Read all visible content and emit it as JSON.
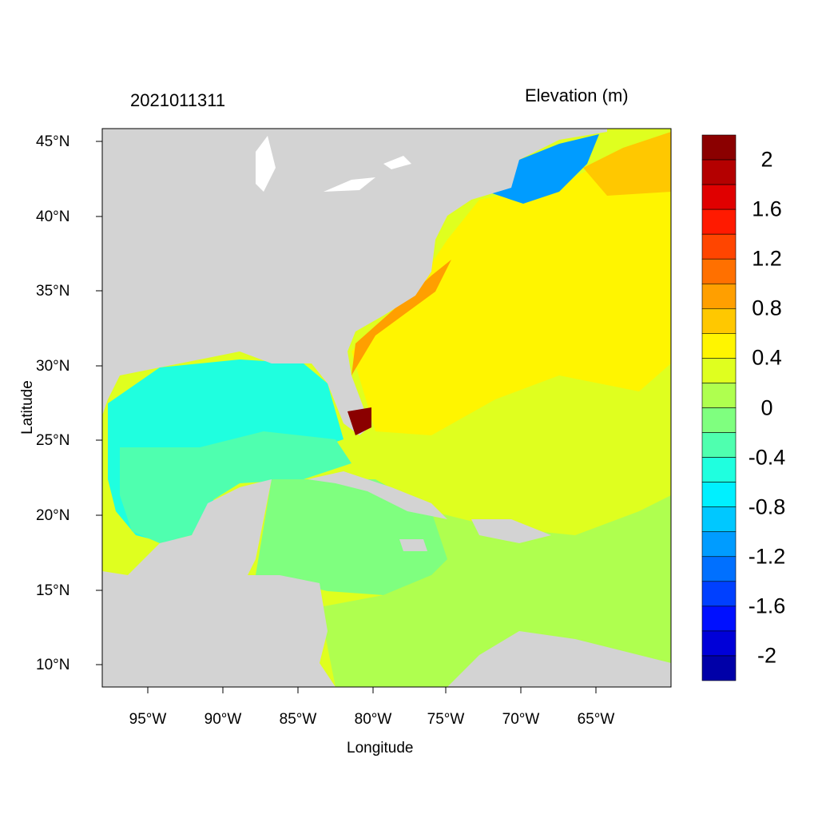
{
  "title_left": "2021011311",
  "title_right": "Elevation (m)",
  "x_axis": {
    "label": "Longitude",
    "ticks": [
      "95°W",
      "90°W",
      "85°W",
      "80°W",
      "75°W",
      "70°W",
      "65°W"
    ]
  },
  "y_axis": {
    "label": "Latitude",
    "ticks": [
      "45°N",
      "40°N",
      "35°N",
      "30°N",
      "25°N",
      "20°N",
      "15°N",
      "10°N"
    ]
  },
  "colorbar": {
    "labels": [
      "2",
      "1.6",
      "1.2",
      "0.8",
      "0.4",
      "0",
      "-0.4",
      "-0.8",
      "-1.2",
      "-1.6",
      "-2"
    ],
    "colors": [
      "#8b0000",
      "#b40000",
      "#e00000",
      "#ff1a00",
      "#ff4500",
      "#ff7000",
      "#ff9f00",
      "#ffc800",
      "#fff500",
      "#dfff1f",
      "#afff4f",
      "#7fff7f",
      "#4fffaf",
      "#1fffdf",
      "#00f0ff",
      "#00c8ff",
      "#009cff",
      "#0070ff",
      "#0040ff",
      "#0010ff",
      "#0000d8",
      "#0000a8"
    ]
  },
  "colors": {
    "land": "#d3d3d3"
  }
}
